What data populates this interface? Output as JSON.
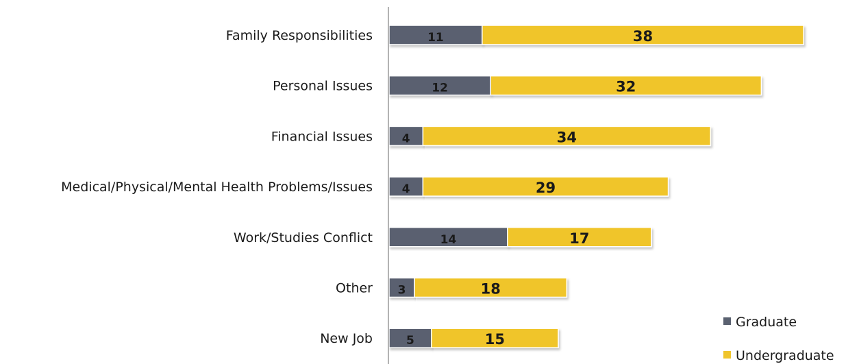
{
  "chart_data": {
    "type": "bar",
    "orientation": "horizontal",
    "stacked": true,
    "categories": [
      "Family Responsibilities",
      "Personal Issues",
      "Financial Issues",
      "Medical/Physical/Mental Health Problems/Issues",
      "Work/Studies Conflict",
      "Other",
      "New Job"
    ],
    "series": [
      {
        "name": "Graduate",
        "color": "#5a6170",
        "values": [
          11,
          12,
          4,
          4,
          14,
          3,
          5
        ]
      },
      {
        "name": "Undergraduate",
        "color": "#f0c52c",
        "values": [
          38,
          32,
          34,
          29,
          17,
          18,
          15
        ]
      }
    ],
    "title": "",
    "xlabel": "",
    "ylabel": "",
    "legend_position": "bottom-right",
    "grid": false
  }
}
